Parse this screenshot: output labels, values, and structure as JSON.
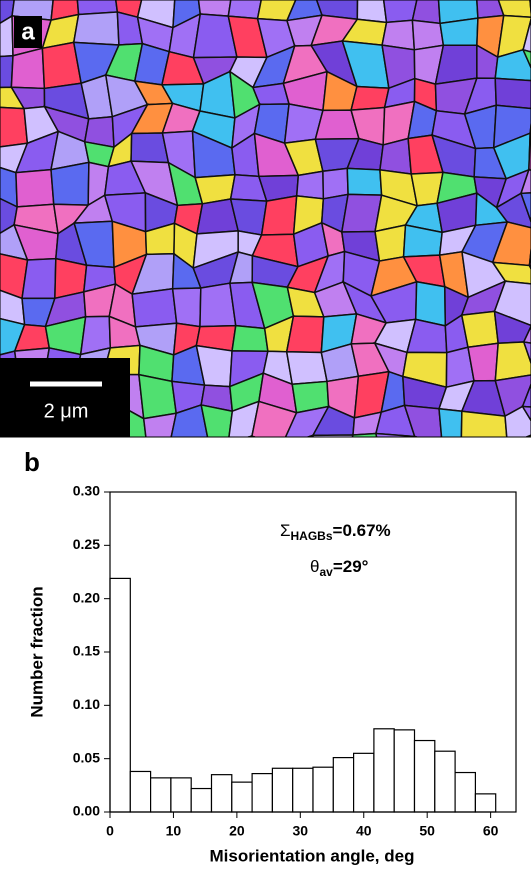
{
  "panel_a": {
    "label": "a",
    "scale_bar": "2 μm"
  },
  "chart_data": {
    "type": "histogram",
    "panel_label": "b",
    "x_label": "Misorientation angle, deg",
    "y_label": "Number fraction",
    "bins": [
      0,
      3.2,
      6.4,
      9.6,
      12.8,
      16,
      19.2,
      22.4,
      25.6,
      28.8,
      32,
      35.2,
      38.4,
      41.6,
      44.8,
      48,
      51.2,
      54.4,
      57.6,
      60.8
    ],
    "values": [
      0.219,
      0.038,
      0.032,
      0.032,
      0.022,
      0.035,
      0.028,
      0.036,
      0.041,
      0.041,
      0.042,
      0.051,
      0.055,
      0.078,
      0.077,
      0.067,
      0.057,
      0.037,
      0.017
    ],
    "color": "#ffffff",
    "xlim": [
      0,
      64
    ],
    "xticks": [
      0,
      10,
      20,
      30,
      40,
      50,
      60
    ],
    "ylim": [
      0,
      0.3
    ],
    "yticks": [
      {
        "value": 0,
        "label": "0.00"
      },
      {
        "value": 0.05,
        "label": "0.05"
      },
      {
        "value": 0.1,
        "label": "0.10"
      },
      {
        "value": 0.15,
        "label": "0.15"
      },
      {
        "value": 0.2,
        "label": "0.20"
      },
      {
        "value": 0.25,
        "label": "0.25"
      },
      {
        "value": 0.3,
        "label": "0.30"
      }
    ],
    "annotations": [
      {
        "symbol": "Σ",
        "sub": "HAGBs",
        "text": "=0.67%"
      },
      {
        "symbol": "θ",
        "sub": "av",
        "text": "=29°"
      }
    ]
  }
}
